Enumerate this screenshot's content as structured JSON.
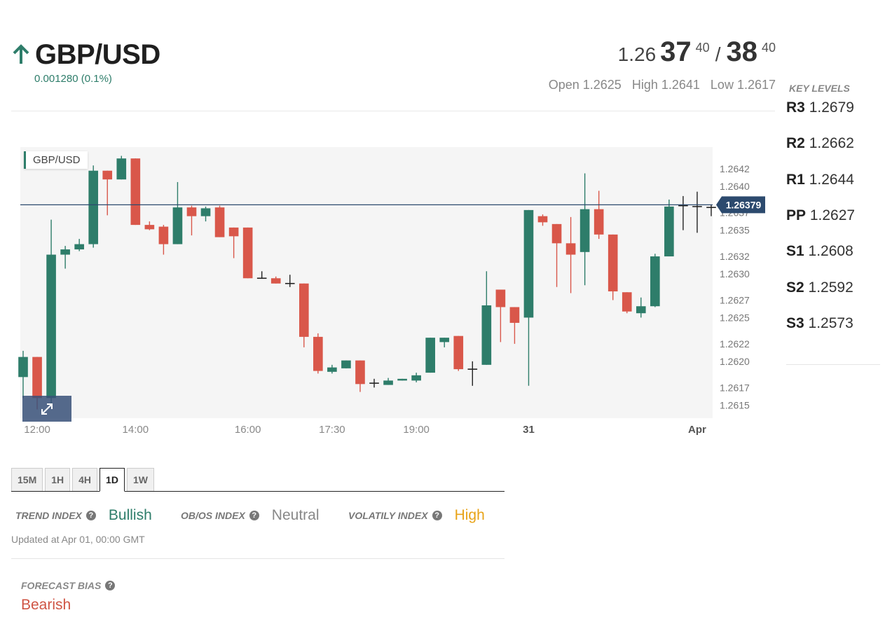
{
  "header": {
    "pair": "GBP/USD",
    "change": "0.001280 (0.1%)",
    "bid_base": "1.26",
    "bid_big": "37",
    "bid_sup": "40",
    "separator": "/",
    "ask_big": "38",
    "ask_sup": "40",
    "open": "Open 1.2625",
    "high": "High 1.2641",
    "low": "Low 1.2617",
    "up_color": "#2e7d6a"
  },
  "key_levels": {
    "title": "KEY LEVELS",
    "levels": [
      {
        "name": "R3",
        "value": "1.2679"
      },
      {
        "name": "R2",
        "value": "1.2662"
      },
      {
        "name": "R1",
        "value": "1.2644"
      },
      {
        "name": "PP",
        "value": "1.2627"
      },
      {
        "name": "S1",
        "value": "1.2608"
      },
      {
        "name": "S2",
        "value": "1.2592"
      },
      {
        "name": "S3",
        "value": "1.2573"
      }
    ]
  },
  "chart_data": {
    "type": "candlestick",
    "title": "GBP/USD",
    "ylim": [
      1.26135,
      1.26445
    ],
    "y_ticks": [
      "1.2642",
      "1.2640",
      "1.2637",
      "1.2635",
      "1.2632",
      "1.2630",
      "1.2627",
      "1.2625",
      "1.2622",
      "1.2620",
      "1.2617",
      "1.2615"
    ],
    "x_labels": [
      {
        "label": "12:00",
        "index": 1,
        "bold": false
      },
      {
        "label": "14:00",
        "index": 8,
        "bold": false
      },
      {
        "label": "16:00",
        "index": 16,
        "bold": false
      },
      {
        "label": "17:30",
        "index": 22,
        "bold": false
      },
      {
        "label": "19:00",
        "index": 28,
        "bold": false
      },
      {
        "label": "31",
        "index": 36,
        "bold": true
      },
      {
        "label": "Apr",
        "index": 48,
        "bold": true
      }
    ],
    "current_price": 1.26379,
    "current_price_label": "1.26379",
    "colors": {
      "up": "#2e7d6a",
      "down": "#d9574a",
      "doji": "#222222",
      "price_line": "#2c4a6e",
      "plot_bg": "#f5f5f5"
    },
    "candles": [
      [
        1.26182,
        1.26205,
        1.26212,
        1.26158
      ],
      [
        1.26205,
        1.26158,
        1.26205,
        1.26145
      ],
      [
        1.26158,
        1.26322,
        1.26362,
        1.2615
      ],
      [
        1.26322,
        1.26328,
        1.26332,
        1.26306
      ],
      [
        1.26328,
        1.26334,
        1.2634,
        1.26326
      ],
      [
        1.26334,
        1.26418,
        1.26424,
        1.2633
      ],
      [
        1.26418,
        1.26408,
        1.26418,
        1.26367
      ],
      [
        1.26408,
        1.26432,
        1.26435,
        1.26408
      ],
      [
        1.26432,
        1.26356,
        1.26432,
        1.26356
      ],
      [
        1.26356,
        1.26351,
        1.2636,
        1.2635
      ],
      [
        1.26354,
        1.26334,
        1.26356,
        1.26322
      ],
      [
        1.26334,
        1.26376,
        1.26405,
        1.26334
      ],
      [
        1.26376,
        1.26366,
        1.26378,
        1.26344
      ],
      [
        1.26366,
        1.26375,
        1.26377,
        1.2636
      ],
      [
        1.26376,
        1.26342,
        1.26378,
        1.26342
      ],
      [
        1.26353,
        1.26343,
        1.26353,
        1.26318
      ],
      [
        1.26353,
        1.26295,
        1.26353,
        1.26295
      ],
      [
        1.26295,
        1.26295,
        1.26303,
        1.26295
      ],
      [
        1.26295,
        1.26289,
        1.26297,
        1.26289
      ],
      [
        1.26289,
        1.26289,
        1.26299,
        1.26285
      ],
      [
        1.26289,
        1.26228,
        1.26289,
        1.26216
      ],
      [
        1.26228,
        1.26189,
        1.26232,
        1.26186
      ],
      [
        1.26188,
        1.26193,
        1.26196,
        1.26186
      ],
      [
        1.26192,
        1.26201,
        1.26201,
        1.26192
      ],
      [
        1.26201,
        1.26174,
        1.26201,
        1.26165
      ],
      [
        1.26175,
        1.26175,
        1.2618,
        1.2617
      ],
      [
        1.26173,
        1.26178,
        1.26181,
        1.26173
      ],
      [
        1.26178,
        1.2618,
        1.2618,
        1.26178
      ],
      [
        1.26178,
        1.26184,
        1.26187,
        1.26176
      ],
      [
        1.26187,
        1.26227,
        1.26227,
        1.26187
      ],
      [
        1.26222,
        1.26227,
        1.26227,
        1.26216
      ],
      [
        1.26229,
        1.26191,
        1.26229,
        1.26189
      ],
      [
        1.26191,
        1.26191,
        1.262,
        1.26172
      ],
      [
        1.26196,
        1.26264,
        1.26303,
        1.26196
      ],
      [
        1.26282,
        1.26262,
        1.26282,
        1.26222
      ],
      [
        1.26262,
        1.26244,
        1.26262,
        1.2622
      ],
      [
        1.2625,
        1.26373,
        1.26373,
        1.26172
      ],
      [
        1.26366,
        1.26359,
        1.26368,
        1.26355
      ],
      [
        1.26357,
        1.26335,
        1.26357,
        1.26285
      ],
      [
        1.26335,
        1.26322,
        1.26365,
        1.26278
      ],
      [
        1.26325,
        1.26374,
        1.26415,
        1.26287
      ],
      [
        1.26374,
        1.26345,
        1.26395,
        1.2634
      ],
      [
        1.26345,
        1.2628,
        1.26345,
        1.2627
      ],
      [
        1.26279,
        1.26257,
        1.26279,
        1.26255
      ],
      [
        1.26255,
        1.26263,
        1.26273,
        1.2625
      ],
      [
        1.26263,
        1.2632,
        1.26323,
        1.26262
      ],
      [
        1.2632,
        1.26377,
        1.26385,
        1.2632
      ],
      [
        1.26378,
        1.26377,
        1.26389,
        1.2635
      ],
      [
        1.26377,
        1.26377,
        1.26394,
        1.26347
      ],
      [
        1.26376,
        1.26377,
        1.26379,
        1.26366
      ]
    ]
  },
  "timeframes": {
    "tabs": [
      "15M",
      "1H",
      "4H",
      "1D",
      "1W"
    ],
    "active": "1D"
  },
  "indices": {
    "trend_label": "TREND INDEX",
    "trend_value": "Bullish",
    "trend_color": "#2e7d6a",
    "obos_label": "OB/OS INDEX",
    "obos_value": "Neutral",
    "obos_color": "#888888",
    "vol_label": "VOLATILY INDEX",
    "vol_value": "High",
    "vol_color": "#e8a317",
    "updated": "Updated at Apr 01, 00:00 GMT"
  },
  "forecast": {
    "label": "FORECAST BIAS",
    "value": "Bearish",
    "color": "#cf5444"
  },
  "icons": [
    "arrow-up-icon",
    "question-icon",
    "expand-icon"
  ]
}
